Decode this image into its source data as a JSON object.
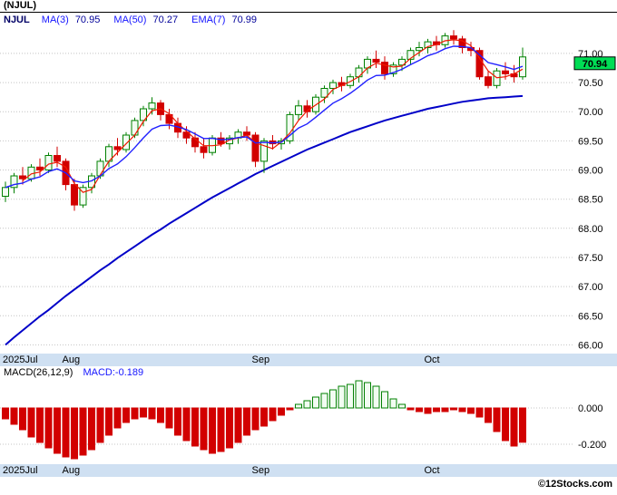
{
  "title": "(NJUL)",
  "legend": {
    "symbol": "NJUL",
    "ma3_label": "MA(3)",
    "ma3_value": "70.95",
    "ma50_label": "MA(50)",
    "ma50_value": "70.27",
    "ema7_label": "EMA(7)",
    "ema7_value": "70.99"
  },
  "price_badge": "70.94",
  "macd_legend": {
    "params": "MACD(26,12,9)",
    "value": "MACD:-0.189"
  },
  "footer": "©12Stocks.com",
  "colors": {
    "up": "#008000",
    "up_fill": "#f2fcf2",
    "down": "#d20000",
    "ma3": "#f01800",
    "ema7": "#2020ff",
    "ma50": "#0000c8",
    "badge_bg": "#00dd55",
    "axis_bg": "#cfe0f2"
  },
  "chart_data": [
    {
      "type": "candlestick",
      "title": "NJUL daily price with MA(3), EMA(7), MA(50)",
      "ylim": [
        65.85,
        71.45
      ],
      "last_price": 70.94,
      "x_ticks": [
        {
          "label": "2025Jul",
          "index": 0
        },
        {
          "label": "Aug",
          "index": 7
        },
        {
          "label": "Sep",
          "index": 29
        },
        {
          "label": "Oct",
          "index": 49
        }
      ],
      "price_ticks": [
        {
          "label": "71.00",
          "value": 71.0
        },
        {
          "label": "70.50",
          "value": 70.5
        },
        {
          "label": "70.00",
          "value": 70.0
        },
        {
          "label": "69.50",
          "value": 69.5
        },
        {
          "label": "69.00",
          "value": 69.0
        },
        {
          "label": "68.50",
          "value": 68.5
        },
        {
          "label": "68.00",
          "value": 68.0
        },
        {
          "label": "67.50",
          "value": 67.5
        },
        {
          "label": "67.00",
          "value": 67.0
        },
        {
          "label": "66.50",
          "value": 66.5
        },
        {
          "label": "66.00",
          "value": 66.0
        }
      ],
      "ohlc": [
        [
          68.55,
          68.8,
          68.45,
          68.7
        ],
        [
          68.7,
          68.95,
          68.6,
          68.9
        ],
        [
          68.9,
          69.05,
          68.75,
          68.85
        ],
        [
          68.85,
          69.1,
          68.8,
          69.05
        ],
        [
          69.05,
          69.2,
          68.9,
          69.0
        ],
        [
          69.0,
          69.3,
          68.95,
          69.25
        ],
        [
          69.25,
          69.4,
          69.05,
          69.15
        ],
        [
          69.15,
          69.2,
          68.65,
          68.75
        ],
        [
          68.75,
          68.85,
          68.3,
          68.4
        ],
        [
          68.4,
          68.75,
          68.35,
          68.7
        ],
        [
          68.7,
          68.95,
          68.6,
          68.9
        ],
        [
          68.9,
          69.2,
          68.85,
          69.15
        ],
        [
          69.15,
          69.45,
          69.05,
          69.4
        ],
        [
          69.4,
          69.55,
          69.25,
          69.35
        ],
        [
          69.35,
          69.65,
          69.3,
          69.6
        ],
        [
          69.6,
          69.9,
          69.55,
          69.85
        ],
        [
          69.85,
          70.1,
          69.75,
          70.05
        ],
        [
          70.05,
          70.25,
          69.95,
          70.15
        ],
        [
          70.15,
          70.2,
          69.85,
          69.95
        ],
        [
          69.95,
          70.05,
          69.7,
          69.8
        ],
        [
          69.8,
          69.9,
          69.55,
          69.65
        ],
        [
          69.65,
          69.75,
          69.45,
          69.55
        ],
        [
          69.55,
          69.65,
          69.3,
          69.4
        ],
        [
          69.4,
          69.55,
          69.2,
          69.3
        ],
        [
          69.3,
          69.6,
          69.25,
          69.55
        ],
        [
          69.55,
          69.65,
          69.4,
          69.45
        ],
        [
          69.45,
          69.6,
          69.35,
          69.55
        ],
        [
          69.55,
          69.7,
          69.45,
          69.65
        ],
        [
          69.65,
          69.75,
          69.5,
          69.6
        ],
        [
          69.6,
          69.65,
          69.05,
          69.15
        ],
        [
          69.15,
          69.55,
          68.95,
          69.5
        ],
        [
          69.5,
          69.6,
          69.35,
          69.45
        ],
        [
          69.45,
          69.55,
          69.35,
          69.5
        ],
        [
          69.5,
          70.0,
          69.45,
          69.95
        ],
        [
          69.95,
          70.2,
          69.85,
          70.1
        ],
        [
          70.1,
          70.2,
          69.9,
          70.0
        ],
        [
          70.0,
          70.3,
          69.95,
          70.25
        ],
        [
          70.25,
          70.45,
          70.15,
          70.4
        ],
        [
          70.4,
          70.55,
          70.3,
          70.5
        ],
        [
          70.5,
          70.6,
          70.35,
          70.45
        ],
        [
          70.45,
          70.65,
          70.4,
          70.6
        ],
        [
          70.6,
          70.8,
          70.5,
          70.75
        ],
        [
          70.75,
          70.95,
          70.65,
          70.9
        ],
        [
          70.9,
          71.05,
          70.75,
          70.85
        ],
        [
          70.85,
          70.95,
          70.55,
          70.65
        ],
        [
          70.65,
          70.85,
          70.6,
          70.8
        ],
        [
          70.8,
          70.95,
          70.7,
          70.9
        ],
        [
          70.9,
          71.1,
          70.8,
          71.05
        ],
        [
          71.05,
          71.2,
          70.95,
          71.1
        ],
        [
          71.1,
          71.25,
          71.0,
          71.2
        ],
        [
          71.2,
          71.3,
          71.05,
          71.15
        ],
        [
          71.15,
          71.35,
          71.1,
          71.3
        ],
        [
          71.3,
          71.4,
          71.15,
          71.25
        ],
        [
          71.25,
          71.3,
          71.0,
          71.1
        ],
        [
          71.1,
          71.2,
          70.95,
          71.05
        ],
        [
          71.05,
          71.1,
          70.55,
          70.6
        ],
        [
          70.6,
          70.7,
          70.4,
          70.45
        ],
        [
          70.45,
          70.75,
          70.4,
          70.7
        ],
        [
          70.7,
          70.85,
          70.55,
          70.65
        ],
        [
          70.65,
          70.8,
          70.5,
          70.6
        ],
        [
          70.6,
          71.1,
          70.55,
          70.94
        ]
      ],
      "ma50": [
        66.0,
        66.13,
        66.25,
        66.37,
        66.49,
        66.6,
        66.72,
        66.84,
        66.95,
        67.06,
        67.17,
        67.28,
        67.38,
        67.49,
        67.59,
        67.69,
        67.79,
        67.89,
        67.98,
        68.08,
        68.17,
        68.26,
        68.35,
        68.44,
        68.53,
        68.61,
        68.69,
        68.77,
        68.85,
        68.93,
        69.0,
        69.07,
        69.14,
        69.21,
        69.28,
        69.35,
        69.41,
        69.47,
        69.53,
        69.59,
        69.65,
        69.7,
        69.75,
        69.8,
        69.85,
        69.89,
        69.93,
        69.97,
        70.01,
        70.05,
        70.08,
        70.11,
        70.14,
        70.17,
        70.19,
        70.21,
        70.23,
        70.24,
        70.25,
        70.26,
        70.27
      ]
    },
    {
      "type": "bar",
      "title": "MACD(26,12,9) histogram",
      "ylim": [
        -0.31,
        0.16
      ],
      "last": -0.189,
      "ticks": [
        {
          "label": "0.000",
          "value": 0
        },
        {
          "label": "-0.200",
          "value": -0.2
        }
      ],
      "values": [
        -0.06,
        -0.09,
        -0.12,
        -0.16,
        -0.19,
        -0.22,
        -0.25,
        -0.27,
        -0.28,
        -0.26,
        -0.23,
        -0.19,
        -0.15,
        -0.11,
        -0.08,
        -0.06,
        -0.05,
        -0.06,
        -0.08,
        -0.11,
        -0.15,
        -0.18,
        -0.21,
        -0.23,
        -0.25,
        -0.24,
        -0.22,
        -0.19,
        -0.15,
        -0.12,
        -0.1,
        -0.07,
        -0.04,
        -0.01,
        0.02,
        0.04,
        0.06,
        0.08,
        0.1,
        0.12,
        0.13,
        0.15,
        0.14,
        0.12,
        0.09,
        0.05,
        0.02,
        -0.01,
        -0.02,
        -0.03,
        -0.02,
        -0.02,
        -0.01,
        -0.02,
        -0.03,
        -0.05,
        -0.08,
        -0.13,
        -0.18,
        -0.21,
        -0.189
      ]
    }
  ]
}
